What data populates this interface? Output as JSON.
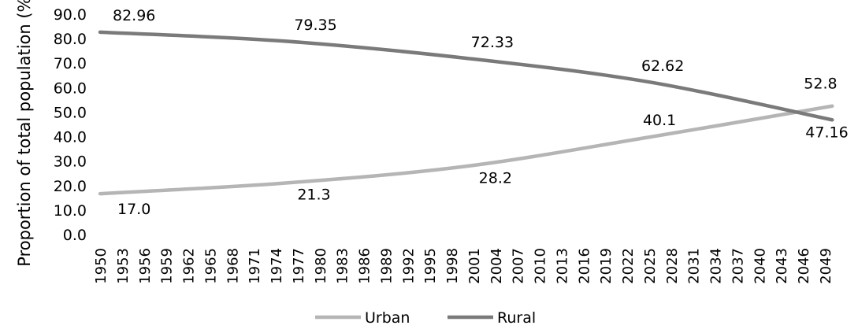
{
  "chart_data": {
    "type": "line",
    "title": "",
    "xlabel": "",
    "ylabel": "Proportion of total population (%)",
    "ylim": [
      0,
      90
    ],
    "yticks": [
      "0.0",
      "10.0",
      "20.0",
      "30.0",
      "40.0",
      "50.0",
      "60.0",
      "70.0",
      "80.0",
      "90.0"
    ],
    "xticks": [
      1950,
      1953,
      1956,
      1959,
      1962,
      1965,
      1968,
      1971,
      1974,
      1977,
      1980,
      1983,
      1986,
      1989,
      1992,
      1995,
      1998,
      2001,
      2004,
      2007,
      2010,
      2013,
      2016,
      2019,
      2022,
      2025,
      2028,
      2031,
      2034,
      2037,
      2040,
      2043,
      2046,
      2049
    ],
    "grid": false,
    "legend_position": "bottom-center",
    "series": [
      {
        "name": "Urban",
        "color": "#b5b5b5",
        "x": [
          1950,
          1975,
          2000,
          2025,
          2050
        ],
        "values": [
          17.0,
          21.3,
          28.2,
          40.1,
          52.8
        ],
        "labels": [
          "17.0",
          "21.3",
          "28.2",
          "40.1",
          "52.8"
        ]
      },
      {
        "name": "Rural",
        "color": "#7a7a7a",
        "x": [
          1950,
          1975,
          2000,
          2025,
          2050
        ],
        "values": [
          82.96,
          79.35,
          72.33,
          62.62,
          47.16
        ],
        "labels": [
          "82.96",
          "79.35",
          "72.33",
          "62.62",
          "47.16"
        ]
      }
    ]
  }
}
